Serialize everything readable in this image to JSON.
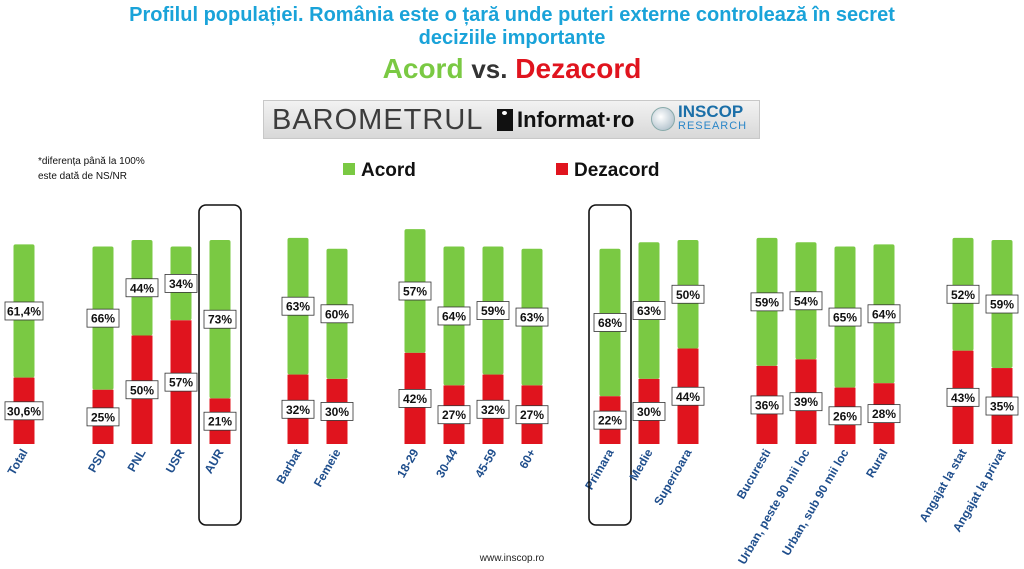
{
  "header": {
    "title_line1": "Profilul populației. România este o țară unde puteri externe controlează în secret",
    "title_line2": "deciziile importante",
    "subtitle_agree": "Acord",
    "subtitle_vs": "vs.",
    "subtitle_disagree": "Dezacord"
  },
  "logo": {
    "barometrul": "BAROMETRUL",
    "informat": "Informat·ro",
    "inscop": "INSCOP",
    "research": "RESEARCH"
  },
  "note": {
    "line1": "*diferența până la 100%",
    "line2": "este dată de NS/NR"
  },
  "footer": "www.inscop.ro",
  "colors": {
    "agree": "#7ac943",
    "disagree": "#e0141e",
    "title": "#1aa3d9"
  },
  "chart_data": {
    "type": "bar",
    "stacked": true,
    "title": "Profilul populației. România este o țară unde puteri externe controlează în secret deciziile importante",
    "legend": [
      "Acord",
      "Dezacord"
    ],
    "legend_position": "top",
    "ylim": [
      0,
      100
    ],
    "categories": [
      "Total",
      "PSD",
      "PNL",
      "USR",
      "AUR",
      "Barbat",
      "Femeie",
      "18-29",
      "30-44",
      "45-59",
      "60+",
      "Primara",
      "Medie",
      "Superioara",
      "Bucuresti",
      "Urban, peste 90 mii loc",
      "Urban, sub 90 mii loc",
      "Rural",
      "Angajat la stat",
      "Angajat la privat"
    ],
    "series": [
      {
        "name": "Dezacord",
        "values": [
          30.6,
          25,
          50,
          57,
          21,
          32,
          30,
          42,
          27,
          32,
          27,
          22,
          30,
          44,
          36,
          39,
          26,
          28,
          43,
          35
        ],
        "labels": [
          "30,6%",
          "25%",
          "50%",
          "57%",
          "21%",
          "32%",
          "30%",
          "42%",
          "27%",
          "32%",
          "27%",
          "22%",
          "30%",
          "44%",
          "36%",
          "39%",
          "26%",
          "28%",
          "43%",
          "35%"
        ]
      },
      {
        "name": "Acord",
        "values": [
          61.4,
          66,
          44,
          34,
          73,
          63,
          60,
          57,
          64,
          59,
          63,
          68,
          63,
          50,
          59,
          54,
          65,
          64,
          52,
          59
        ],
        "labels": [
          "61,4%",
          "66%",
          "44%",
          "34%",
          "73%",
          "63%",
          "60%",
          "57%",
          "64%",
          "59%",
          "63%",
          "68%",
          "63%",
          "50%",
          "59%",
          "54%",
          "65%",
          "64%",
          "52%",
          "59%"
        ]
      }
    ],
    "highlighted": [
      "AUR",
      "Primara"
    ]
  }
}
